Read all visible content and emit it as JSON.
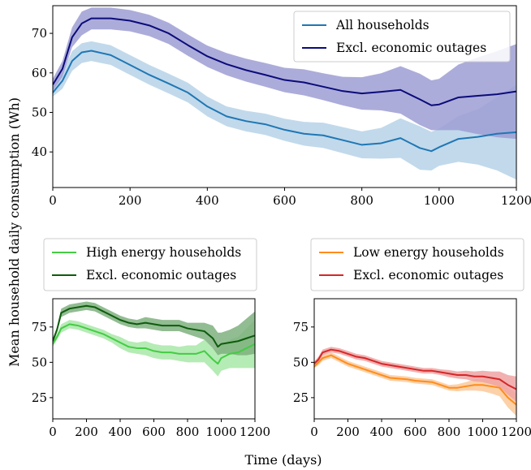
{
  "figure": {
    "ylabel": "Mean household daily consumption (Wh)",
    "xlabel": "Time (days)"
  },
  "chart_data": [
    {
      "type": "line",
      "panel": "top",
      "xlim": [
        0,
        1200
      ],
      "ylim": [
        31,
        77
      ],
      "x_ticks": [
        0,
        200,
        400,
        600,
        800,
        1000,
        1200
      ],
      "y_ticks": [
        40,
        50,
        60,
        70
      ],
      "legend": "top-right",
      "x": [
        0,
        25,
        50,
        75,
        100,
        150,
        200,
        250,
        300,
        350,
        400,
        450,
        500,
        550,
        600,
        650,
        700,
        750,
        800,
        850,
        900,
        950,
        980,
        1000,
        1050,
        1100,
        1150,
        1200
      ],
      "series": [
        {
          "name": "All households",
          "color": "#1f77b4",
          "band_color": "#b6d2e8",
          "values": [
            55,
            58,
            63,
            65.2,
            65.6,
            64.5,
            62,
            59.5,
            57.3,
            55,
            51.5,
            49,
            47.8,
            47,
            45.6,
            44.6,
            44.2,
            43,
            41.8,
            42.2,
            43.5,
            41,
            40.2,
            41.2,
            43.3,
            43.8,
            44.6,
            45
          ],
          "lower": [
            54,
            56,
            60.5,
            62.5,
            63,
            62,
            59.5,
            57,
            54.8,
            52.5,
            49,
            46.5,
            45.2,
            44.3,
            42.8,
            41.6,
            41,
            39.7,
            38.4,
            38.3,
            38.5,
            35.5,
            35.3,
            36.5,
            37.5,
            36.8,
            35.3,
            33
          ],
          "upper": [
            56,
            60,
            65.5,
            67.5,
            68,
            67,
            64.5,
            62,
            59.8,
            57.5,
            54,
            51.5,
            50.4,
            49.7,
            48.4,
            47.6,
            47.4,
            46.3,
            45.2,
            46.1,
            48.5,
            46.5,
            45.1,
            45.9,
            49.1,
            50.8,
            53.9,
            57
          ]
        },
        {
          "name": "Excl. economic outages",
          "color": "#0b0b7a",
          "band_color": "#9d9dd4",
          "values": [
            57,
            61,
            69,
            72.5,
            73.8,
            73.8,
            73.2,
            72,
            70,
            67,
            64.2,
            62.2,
            60.7,
            59.5,
            58.2,
            57.6,
            56.5,
            55.4,
            54.8,
            55.2,
            55.7,
            53.3,
            51.8,
            52,
            53.8,
            54.2,
            54.6,
            55.3
          ],
          "lower": [
            55.5,
            59,
            66.5,
            69.5,
            71,
            71,
            70.5,
            69.3,
            67.3,
            64.3,
            61.5,
            59.4,
            57.8,
            56.5,
            55.1,
            54.3,
            53.1,
            51.8,
            50.7,
            50.5,
            49.7,
            46.8,
            45.5,
            45.5,
            45.5,
            44.5,
            43.7,
            43.3
          ],
          "upper": [
            58.5,
            63,
            71.5,
            75.5,
            76.5,
            76.5,
            75.9,
            74.7,
            72.7,
            69.7,
            66.9,
            65,
            63.6,
            62.5,
            61.3,
            60.9,
            59.9,
            59,
            58.9,
            59.9,
            61.7,
            59.8,
            58.1,
            58.5,
            62.1,
            63.9,
            65.5,
            67.3
          ]
        }
      ]
    },
    {
      "type": "line",
      "panel": "bottom-left",
      "xlim": [
        0,
        1200
      ],
      "ylim": [
        10,
        95
      ],
      "x_ticks": [
        0,
        200,
        400,
        600,
        800,
        1000,
        1200
      ],
      "y_ticks": [
        25,
        50,
        75
      ],
      "legend": "above",
      "x": [
        0,
        25,
        50,
        100,
        150,
        200,
        250,
        300,
        350,
        400,
        450,
        500,
        550,
        600,
        650,
        700,
        750,
        800,
        850,
        900,
        950,
        980,
        1000,
        1050,
        1100,
        1150,
        1200
      ],
      "series": [
        {
          "name": "High energy households",
          "color": "#44cc44",
          "band_color": "#a8e8a8",
          "values": [
            63,
            68,
            74,
            77,
            76,
            74,
            72,
            70,
            67,
            64,
            61,
            60,
            60,
            58,
            57,
            57,
            56,
            56,
            56,
            58,
            52,
            49,
            53,
            56,
            57,
            60,
            63
          ],
          "lower": [
            61,
            66,
            71,
            74,
            73,
            71,
            69,
            67,
            64,
            60,
            57,
            56,
            55,
            53,
            52,
            52,
            51,
            50,
            50,
            50,
            44,
            40,
            44,
            46,
            46,
            46,
            46
          ],
          "upper": [
            65,
            70,
            77,
            80,
            79,
            77,
            75,
            73,
            70,
            68,
            65,
            64,
            65,
            63,
            62,
            62,
            61,
            62,
            62,
            66,
            60,
            58,
            62,
            66,
            68,
            74,
            80
          ]
        },
        {
          "name": "Excl. economic outages",
          "color": "#0d5c0d",
          "band_color": "#7fb07f",
          "values": [
            65,
            73,
            85,
            88,
            89,
            90,
            89,
            86,
            83,
            80,
            78,
            77,
            78,
            77,
            76,
            76,
            76,
            74,
            73,
            72,
            67,
            61,
            63,
            64,
            65,
            67,
            69
          ],
          "lower": [
            63,
            71,
            82,
            85,
            86,
            87,
            86,
            83,
            80,
            77,
            75,
            74,
            74,
            73,
            72,
            72,
            72,
            70,
            68,
            66,
            60,
            55,
            56,
            56,
            55,
            55,
            56
          ],
          "upper": [
            67,
            75,
            88,
            91,
            92,
            93,
            92,
            89,
            86,
            83,
            81,
            80,
            82,
            81,
            80,
            80,
            80,
            78,
            78,
            78,
            76,
            71,
            71,
            73,
            76,
            81,
            86
          ]
        }
      ]
    },
    {
      "type": "line",
      "panel": "bottom-right",
      "xlim": [
        0,
        1200
      ],
      "ylim": [
        10,
        95
      ],
      "x_ticks": [
        0,
        200,
        400,
        600,
        800,
        1000,
        1200
      ],
      "y_ticks": [
        25,
        50,
        75
      ],
      "legend": "above",
      "x": [
        0,
        25,
        50,
        100,
        150,
        200,
        250,
        300,
        350,
        400,
        450,
        500,
        550,
        600,
        650,
        700,
        750,
        800,
        850,
        900,
        950,
        1000,
        1050,
        1100,
        1150,
        1200
      ],
      "series": [
        {
          "name": "Low energy households",
          "color": "#ff8c1a",
          "band_color": "#fcc99a",
          "values": [
            47,
            50,
            53,
            55,
            52,
            49,
            47,
            45,
            43,
            41,
            39,
            38.5,
            38,
            37,
            36.5,
            36,
            34,
            32,
            32,
            33,
            34,
            34,
            33,
            32,
            25,
            20
          ],
          "lower": [
            46,
            48,
            51,
            53,
            50,
            47,
            45,
            43,
            41,
            39,
            37,
            36.5,
            36,
            35,
            34.5,
            34,
            32,
            30,
            29.5,
            30,
            30,
            29.5,
            28,
            26,
            18,
            12
          ],
          "upper": [
            48,
            52,
            55,
            57,
            54,
            51,
            49,
            47,
            45,
            43,
            41,
            40.5,
            40,
            39,
            38.5,
            38,
            36,
            34,
            34.5,
            36,
            38,
            38.5,
            38,
            38,
            32,
            28
          ]
        },
        {
          "name": "Excl. economic outages",
          "color": "#d62728",
          "band_color": "#efa3a3",
          "values": [
            49,
            52,
            57,
            59,
            58,
            56,
            54,
            53,
            51,
            49,
            48,
            47,
            46,
            45,
            44,
            44,
            43,
            42,
            41,
            41,
            40,
            40,
            39,
            38,
            34,
            31
          ],
          "lower": [
            47.5,
            50,
            55,
            57,
            56,
            54,
            52,
            51,
            49,
            47,
            46,
            45,
            44,
            43,
            42,
            42,
            41,
            39.5,
            38.5,
            38,
            36.5,
            36,
            34.5,
            32.5,
            27,
            22
          ],
          "upper": [
            50.5,
            54,
            59,
            61,
            60,
            58,
            56,
            55,
            53,
            51,
            50,
            49,
            48,
            47,
            46,
            46,
            45,
            44.5,
            43.5,
            44,
            43.5,
            44,
            43.5,
            43.5,
            41,
            40
          ]
        }
      ]
    }
  ]
}
